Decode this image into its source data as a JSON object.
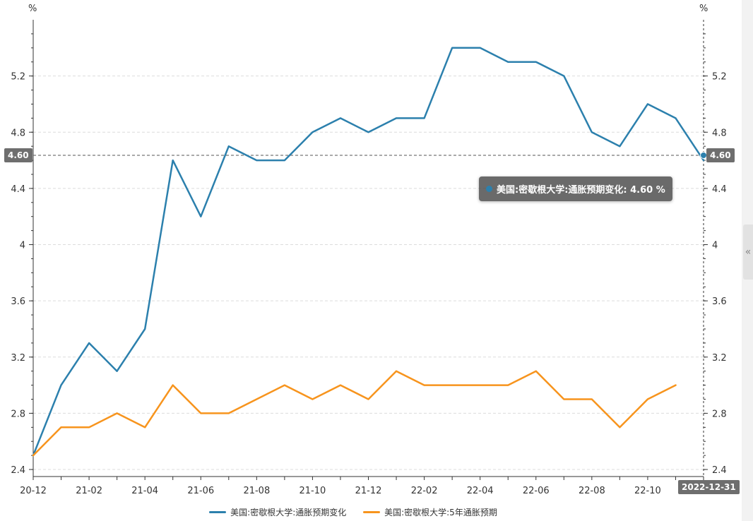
{
  "units": {
    "left": "%",
    "right": "%"
  },
  "cursor": {
    "left_value": "4.60",
    "right_value": "4.60",
    "date": "2022-12-31"
  },
  "tooltip": {
    "text": "美国:密歇根大学:通胀预期变化: 4.60 %"
  },
  "colors": {
    "series1": "#2c80ad",
    "series2": "#f7941d"
  },
  "chart_data": {
    "type": "line",
    "x": [
      "20-12",
      "21-01",
      "21-02",
      "21-03",
      "21-04",
      "21-05",
      "21-06",
      "21-07",
      "21-08",
      "21-09",
      "21-10",
      "21-11",
      "21-12",
      "22-01",
      "22-02",
      "22-03",
      "22-04",
      "22-05",
      "22-06",
      "22-07",
      "22-08",
      "22-09",
      "22-10",
      "22-11",
      "22-12"
    ],
    "x_tick_labels": [
      "20-12",
      "21-02",
      "21-04",
      "21-06",
      "21-08",
      "21-10",
      "21-12",
      "22-02",
      "22-04",
      "22-06",
      "22-08",
      "22-10"
    ],
    "y_ticks": [
      2.4,
      2.8,
      3.2,
      3.6,
      4,
      4.4,
      4.8,
      5.2
    ],
    "ylim": [
      2.35,
      5.6
    ],
    "grid": true,
    "legend_position": "bottom",
    "series": [
      {
        "name": "美国:密歇根大学:通胀预期变化",
        "values": [
          2.5,
          3.0,
          3.3,
          3.1,
          3.4,
          4.6,
          4.2,
          4.7,
          4.6,
          4.6,
          4.8,
          4.9,
          4.8,
          4.9,
          4.9,
          5.4,
          5.4,
          5.3,
          5.3,
          5.2,
          4.8,
          4.7,
          5.0,
          4.9,
          4.6
        ]
      },
      {
        "name": "美国:密歇根大学:5年通胀预期",
        "values": [
          2.5,
          2.7,
          2.7,
          2.8,
          2.7,
          3.0,
          2.8,
          2.8,
          2.9,
          3.0,
          2.9,
          3.0,
          2.9,
          3.1,
          3.0,
          3.0,
          3.0,
          3.0,
          3.1,
          2.9,
          2.9,
          2.7,
          2.9,
          3.0,
          null
        ]
      }
    ]
  }
}
